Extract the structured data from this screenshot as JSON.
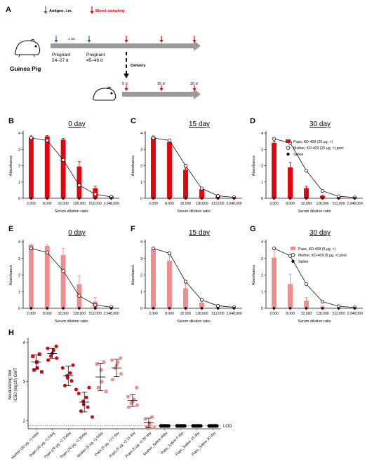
{
  "timeline": {
    "panel_label": "A",
    "legend": {
      "antigen": "Antigen, i.m.",
      "blood": "Blood sampling"
    },
    "animal_label": "Guinea Pig",
    "interval": "3 wk",
    "pregnant1": "Pregnant",
    "pregnant1_days": "24–27 d",
    "pregnant2": "Pregnant",
    "pregnant2_days": "45–48 d",
    "delivery": "Delivery",
    "pup_day_0": "0 d",
    "pup_day_15": "15 d",
    "pup_day_30": "30 d"
  },
  "legends": {
    "row1": {
      "pups": "Pups, KD-409 (20 μg, ×)",
      "mother": "Mother, KD-409 (20 μg, ×),pool",
      "saline": "Saline"
    },
    "row2": {
      "pups": "Pups, KD-409 (5 μg, ×)",
      "mother": "Mother, KD-409 (5 μg, ×),pool",
      "saline": "Saline"
    }
  },
  "colors": {
    "bar_red": "#e8000b",
    "bar_pink": "#f28b8b",
    "dot_red": "#d9000a",
    "dot_pink": "#f08c8c",
    "black": "#000000",
    "arrow_blue": "#2d5fa8"
  },
  "chart_data": [
    {
      "id": "B",
      "type": "bar",
      "title": "0 day",
      "xlabel": "Serum dilution ratio",
      "ylabel": "Absorbance",
      "categories": [
        "2,000",
        "8,000",
        "32,000",
        "128,000",
        "512,000",
        "2,048,000"
      ],
      "ylim": [
        0,
        4
      ],
      "yticks": [
        0,
        1,
        2,
        3,
        4
      ],
      "series": [
        {
          "name": "Pups, KD-409 (20 μg, ×)",
          "values": [
            3.75,
            3.8,
            3.6,
            1.95,
            0.62,
            0.12
          ],
          "errors": [
            0.08,
            0.05,
            0.08,
            0.3,
            0.12,
            0.03
          ]
        },
        {
          "name": "Mother, KD-409 (20 μg, ×),pool",
          "values": [
            3.7,
            3.55,
            2.35,
            0.8,
            0.25,
            0.08
          ]
        },
        {
          "name": "Saline",
          "values": [
            0,
            0,
            0,
            0,
            0,
            0
          ]
        }
      ]
    },
    {
      "id": "C",
      "type": "bar",
      "title": "15 day",
      "xlabel": "Serum dilution ratio",
      "ylabel": "Absorbance",
      "categories": [
        "2,000",
        "8,000",
        "32,000",
        "128,000",
        "512,000",
        "2,048,000"
      ],
      "ylim": [
        0,
        4
      ],
      "yticks": [
        0,
        1,
        2,
        3,
        4
      ],
      "series": [
        {
          "name": "Pups, KD-409 (20 μg, ×)",
          "values": [
            3.75,
            3.45,
            1.75,
            0.55,
            0.12,
            0.05
          ],
          "errors": [
            0.08,
            0.08,
            0.1,
            0.06,
            0.02,
            0.01
          ]
        },
        {
          "name": "Mother, KD-409 (20 μg, ×),pool",
          "values": [
            3.7,
            3.55,
            2.0,
            0.6,
            0.15,
            0.06
          ]
        },
        {
          "name": "Saline",
          "values": [
            0,
            0,
            0,
            0,
            0,
            0
          ]
        }
      ]
    },
    {
      "id": "D",
      "type": "bar",
      "title": "30 day",
      "xlabel": "Serum dilution ratio",
      "ylabel": "Absorbance",
      "categories": [
        "2,000",
        "8,000",
        "32,000",
        "128,000",
        "512,000",
        "2,048,000"
      ],
      "ylim": [
        0,
        4
      ],
      "yticks": [
        0,
        1,
        2,
        3,
        4
      ],
      "series": [
        {
          "name": "Pups, KD-409 (20 μg, ×)",
          "values": [
            3.4,
            1.9,
            0.62,
            0.15,
            0.05,
            0.03
          ],
          "errors": [
            0.1,
            0.3,
            0.12,
            0.03,
            0.01,
            0.01
          ]
        },
        {
          "name": "Mother, KD-409 (20 μg, ×),pool",
          "values": [
            3.65,
            3.4,
            1.7,
            0.45,
            0.12,
            0.05
          ]
        },
        {
          "name": "Saline",
          "values": [
            0,
            0,
            0,
            0,
            0,
            0
          ]
        }
      ]
    },
    {
      "id": "E",
      "type": "bar",
      "title": "0 day",
      "xlabel": "Serum dilution ratio",
      "ylabel": "Absorbance",
      "categories": [
        "2,000",
        "8,000",
        "32,000",
        "128,000",
        "512,000",
        "2,048,000"
      ],
      "ylim": [
        0,
        4
      ],
      "yticks": [
        0,
        1,
        2,
        3,
        4
      ],
      "series": [
        {
          "name": "Pups, KD-409 (5 μg, ×)",
          "values": [
            3.8,
            3.75,
            3.2,
            1.45,
            0.4,
            0.1
          ],
          "errors": [
            0.05,
            0.08,
            0.4,
            0.5,
            0.25,
            0.04
          ]
        },
        {
          "name": "Mother, KD-409 (5 μg, ×),pool",
          "values": [
            3.6,
            3.35,
            2.25,
            0.75,
            0.2,
            0.07
          ]
        },
        {
          "name": "Saline",
          "values": [
            0,
            0,
            0,
            0,
            0,
            0
          ]
        }
      ]
    },
    {
      "id": "F",
      "type": "bar",
      "title": "15 day",
      "xlabel": "Serum dilution ratio",
      "ylabel": "Absorbance",
      "categories": [
        "2,000",
        "8,000",
        "32,000",
        "128,000",
        "512,000",
        "2,048,000"
      ],
      "ylim": [
        0,
        4
      ],
      "yticks": [
        0,
        1,
        2,
        3,
        4
      ],
      "series": [
        {
          "name": "Pups, KD-409 (5 μg, ×)",
          "values": [
            3.55,
            2.85,
            1.2,
            0.35,
            0.1,
            0.04
          ],
          "errors": [
            0.06,
            0.3,
            0.3,
            0.1,
            0.03,
            0.01
          ]
        },
        {
          "name": "Mother, KD-409 (5 μg, ×),pool",
          "values": [
            3.6,
            3.3,
            1.6,
            0.5,
            0.15,
            0.06
          ]
        },
        {
          "name": "Saline",
          "values": [
            0,
            0,
            0,
            0,
            0,
            0
          ]
        }
      ]
    },
    {
      "id": "G",
      "type": "bar",
      "title": "30 day",
      "xlabel": "Serum dilution ratio",
      "ylabel": "Absorbance",
      "categories": [
        "2,000",
        "8,000",
        "32,000",
        "128,000",
        "512,000",
        "2,048,000"
      ],
      "ylim": [
        0,
        4
      ],
      "yticks": [
        0,
        1,
        2,
        3,
        4
      ],
      "series": [
        {
          "name": "Pups, KD-409 (5 μg, ×)",
          "values": [
            3.05,
            1.45,
            0.45,
            0.1,
            0.04,
            0.02
          ],
          "errors": [
            0.5,
            0.6,
            0.2,
            0.03,
            0.01,
            0.01
          ]
        },
        {
          "name": "Mother, KD-409 (5 μg, ×),pool",
          "values": [
            3.6,
            3.15,
            1.45,
            0.4,
            0.12,
            0.05
          ]
        },
        {
          "name": "Saline",
          "values": [
            0,
            0,
            0,
            0,
            0,
            0
          ]
        }
      ]
    },
    {
      "id": "H",
      "type": "scatter",
      "ylabel": "Neutralizing titer",
      "ylabel2": "IC50 (log10) GMT",
      "ylim": [
        1.8,
        4.05
      ],
      "yticks": [
        2,
        3,
        4
      ],
      "lod_label": "LOD",
      "lod": 1.82,
      "groups": [
        {
          "label": "Mother (20 μg, ×) 0day",
          "color": "red",
          "marker": "square",
          "points": [
            3.7,
            3.65,
            3.5,
            3.35,
            3.3,
            3.25
          ],
          "mean": 3.5,
          "sd": 0.18
        },
        {
          "label": "Pups (20 μg, ×) 0day",
          "color": "red",
          "marker": "circle",
          "points": [
            3.9,
            3.85,
            3.8,
            3.72,
            3.65,
            3.6,
            3.55
          ],
          "mean": 3.72,
          "sd": 0.13
        },
        {
          "label": "Pups (20 μg, ×) 15day",
          "color": "red",
          "marker": "circle",
          "points": [
            3.42,
            3.35,
            3.22,
            3.15,
            3.1,
            3.02,
            2.9,
            2.8
          ],
          "mean": 3.15,
          "sd": 0.25
        },
        {
          "label": "Pups (20 μg, ×) 30day",
          "color": "red",
          "marker": "circle",
          "points": [
            2.85,
            2.7,
            2.6,
            2.5,
            2.42,
            2.35,
            2.25,
            2.1
          ],
          "mean": 2.48,
          "sd": 0.25
        },
        {
          "label": "Mother (5 μg, ×) 0day",
          "color": "pink",
          "marker": "square",
          "points": [
            3.5,
            3.45,
            3.3,
            3.0,
            2.85,
            2.75
          ],
          "mean": 3.12,
          "sd": 0.35
        },
        {
          "label": "Pups (5 μg, ×) 0 day",
          "color": "pink",
          "marker": "circle",
          "points": [
            3.6,
            3.55,
            3.5,
            3.42,
            3.35,
            3.2,
            3.05
          ],
          "mean": 3.35,
          "sd": 0.22
        },
        {
          "label": "Pups (5 μg, ×) 15 day",
          "color": "pink",
          "marker": "circle",
          "points": [
            2.85,
            2.62,
            2.55,
            2.5,
            2.45,
            2.4,
            2.35
          ],
          "mean": 2.52,
          "sd": 0.15
        },
        {
          "label": "Pups (5 μg, ×) 30 day",
          "color": "pink",
          "marker": "circle",
          "points": [
            2.1,
            2.05,
            1.95,
            1.88,
            1.85,
            1.83
          ],
          "mean": 1.95,
          "sd": 0.12
        },
        {
          "label": "Mother_Saline 0day",
          "color": "black",
          "marker": "circle",
          "points": [
            1.82,
            1.82,
            1.82,
            1.82,
            1.82,
            1.82
          ],
          "mean": null,
          "sd": null
        },
        {
          "label": "Pups_Saline 0 day",
          "color": "black",
          "marker": "circle",
          "points": [
            1.82,
            1.82,
            1.82,
            1.82,
            1.82,
            1.82
          ],
          "mean": null,
          "sd": null
        },
        {
          "label": "Pups_Saline 15 day",
          "color": "black",
          "marker": "circle",
          "points": [
            1.82,
            1.82,
            1.82,
            1.82,
            1.82,
            1.82
          ],
          "mean": null,
          "sd": null
        },
        {
          "label": "Pups_Saline 30 day",
          "color": "black",
          "marker": "circle",
          "points": [
            1.82,
            1.82,
            1.82,
            1.82,
            1.82,
            1.82
          ],
          "mean": null,
          "sd": null
        }
      ]
    }
  ]
}
